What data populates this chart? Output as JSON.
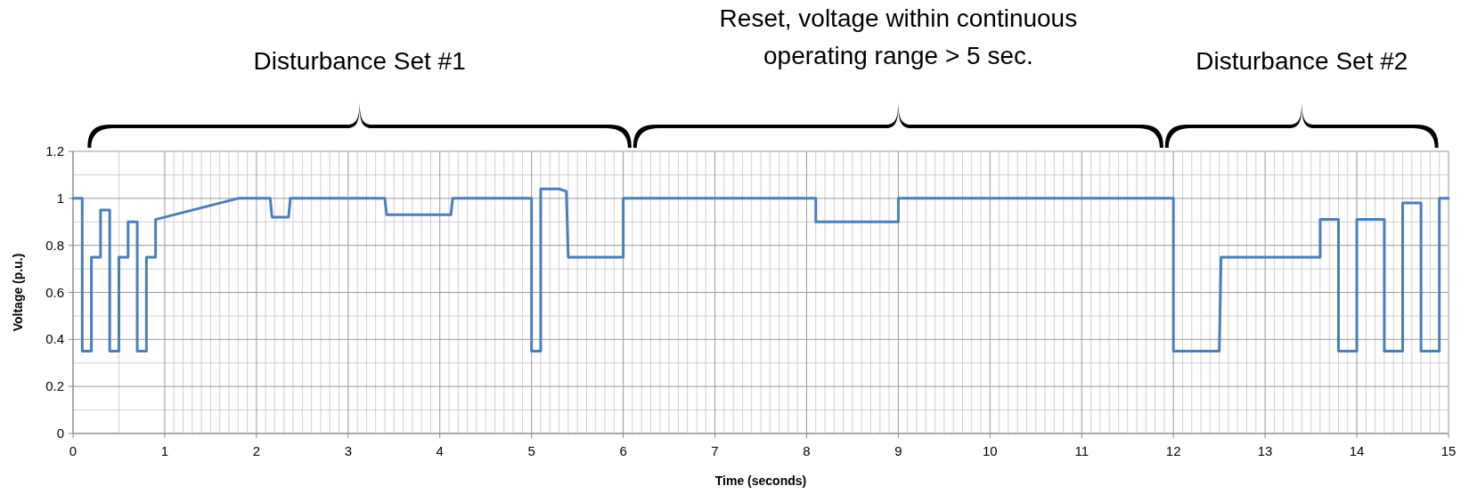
{
  "chart_data": {
    "type": "line",
    "xlabel": "Time (seconds)",
    "ylabel": "Voltage (p.u.)",
    "annotations": [
      "Disturbance Set #1",
      "Reset, voltage within continuous operating range > 5 sec.",
      "Disturbance Set #2"
    ],
    "xlim": [
      0,
      15
    ],
    "xticks": [
      0,
      1,
      2,
      3,
      4,
      5,
      6,
      7,
      8,
      9,
      10,
      11,
      12,
      13,
      14,
      15
    ],
    "ylim": [
      0,
      1.2
    ],
    "yticks": [
      0,
      0.2,
      0.4,
      0.6,
      0.8,
      1,
      1.2
    ],
    "grid": true,
    "marker": "none",
    "line_style": "solid",
    "series": [
      {
        "color": "#4a7ebb",
        "x": [
          0,
          0.1,
          0.1,
          0.2,
          0.2,
          0.3,
          0.3,
          0.4,
          0.4,
          0.5,
          0.5,
          0.6,
          0.6,
          0.7,
          0.7,
          0.8,
          0.8,
          0.9,
          0.9,
          1.8,
          2.15,
          2.17,
          2.35,
          2.37,
          3.4,
          3.42,
          4.12,
          4.14,
          5.0,
          5.0,
          5.1,
          5.1,
          5.3,
          5.38,
          5.4,
          6.0,
          6.0,
          8.1,
          8.1,
          9.0,
          9.0,
          12.0,
          12.0,
          12.5,
          12.52,
          13.6,
          13.6,
          13.8,
          13.8,
          14.0,
          14.0,
          14.3,
          14.3,
          14.5,
          14.5,
          14.7,
          14.7,
          14.9,
          14.9,
          15
        ],
        "values": [
          1,
          1,
          0.35,
          0.35,
          0.75,
          0.75,
          0.95,
          0.95,
          0.35,
          0.35,
          0.75,
          0.75,
          0.9,
          0.9,
          0.35,
          0.35,
          0.75,
          0.75,
          0.91,
          1,
          1,
          0.92,
          0.92,
          1,
          1,
          0.93,
          0.93,
          1,
          1,
          0.35,
          0.35,
          1.04,
          1.04,
          1.03,
          0.75,
          0.75,
          1,
          1,
          0.9,
          0.9,
          1,
          1,
          0.35,
          0.35,
          0.75,
          0.75,
          0.91,
          0.91,
          0.35,
          0.35,
          0.91,
          0.91,
          0.35,
          0.35,
          0.98,
          0.98,
          0.35,
          0.35,
          1,
          1
        ]
      }
    ]
  }
}
